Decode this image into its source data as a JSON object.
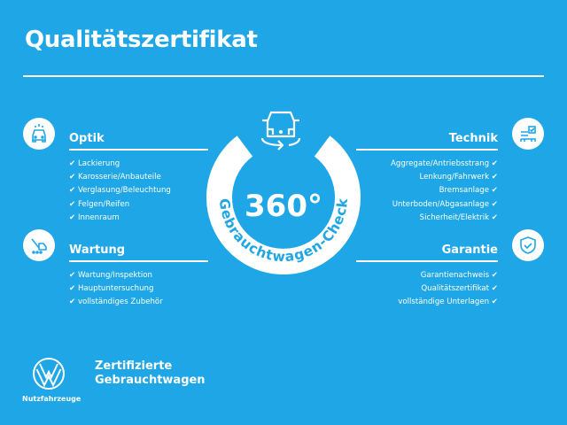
{
  "title": "Qualitätszertifikat",
  "check": "✔",
  "ring": {
    "big": "360°",
    "arc_text": "Gebrauchtwagen-Check"
  },
  "sections": {
    "optik": {
      "title": "Optik",
      "icon": "car-front-icon",
      "items": [
        "Lackierung",
        "Karosserie/Anbauteile",
        "Verglasung/Beleuchtung",
        "Felgen/Reifen",
        "Innenraum"
      ]
    },
    "wartung": {
      "title": "Wartung",
      "icon": "service-tools-icon",
      "items": [
        "Wartung/Inspektion",
        "Hauptuntersuchung",
        "vollständiges Zubehör"
      ]
    },
    "technik": {
      "title": "Technik",
      "icon": "technical-check-icon",
      "items": [
        "Aggregate/Antriebsstrang",
        "Lenkung/Fahrwerk",
        "Bremsanlage",
        "Unterboden/Abgasanlage",
        "Sicherheit/Elektrik"
      ]
    },
    "garantie": {
      "title": "Garantie",
      "icon": "shield-check-icon",
      "items": [
        "Garantienachweis",
        "Qualitätszertifikat",
        "vollständige Unterlagen"
      ]
    }
  },
  "footer": {
    "brand_sub": "Nutzfahrzeuge",
    "line1": "Zertifizierte",
    "line2": "Gebrauchtwagen"
  },
  "colors": {
    "background": "#1ea6e6",
    "foreground": "#ffffff"
  }
}
